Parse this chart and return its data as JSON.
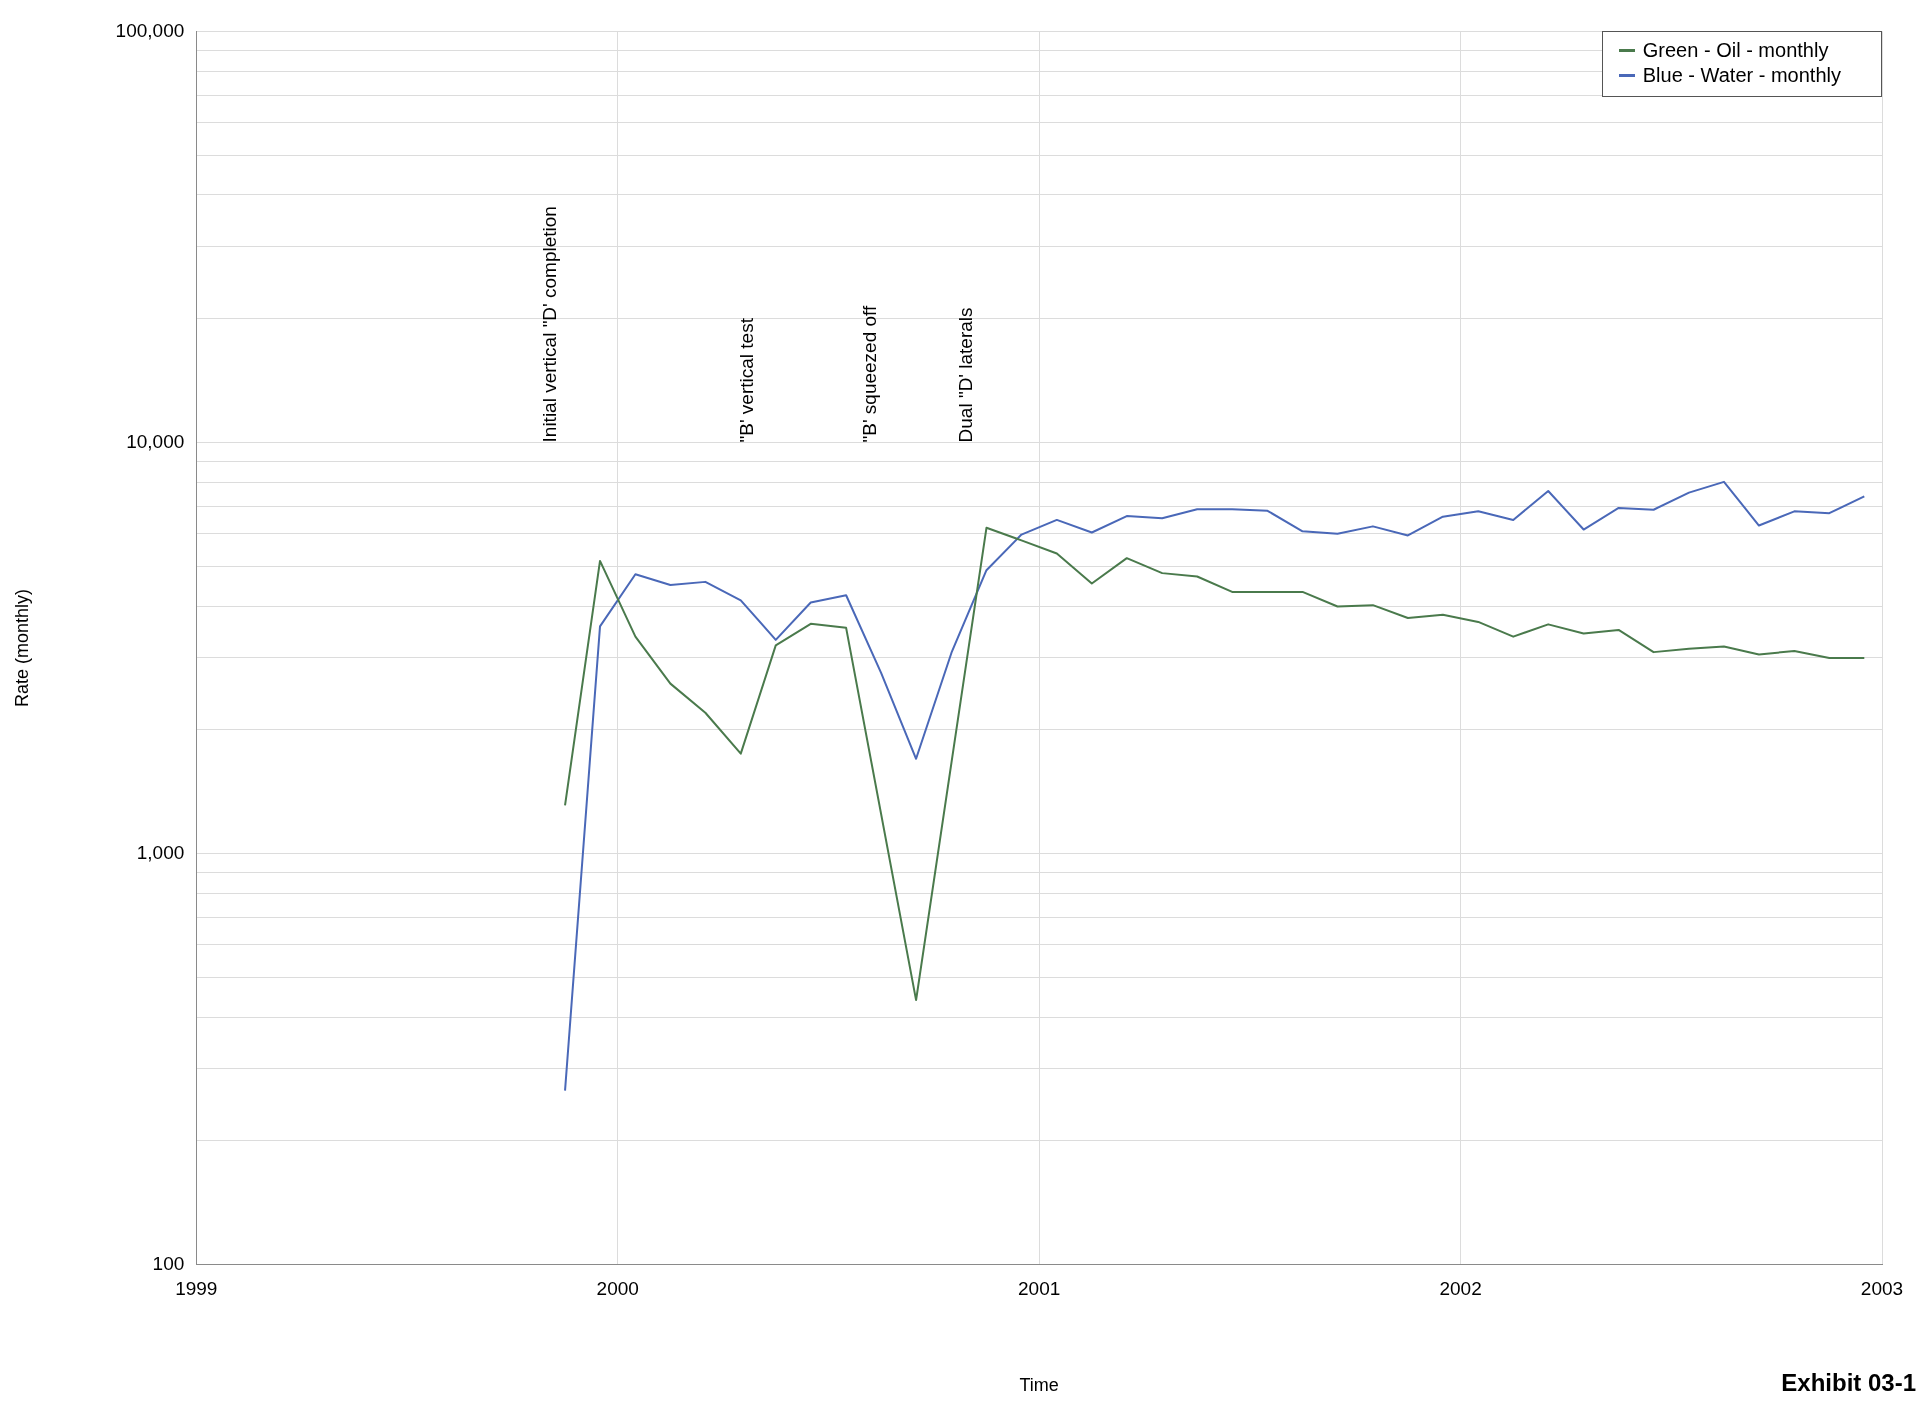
{
  "chart_data": {
    "type": "line",
    "xlabel": "Time",
    "ylabel": "Rate (monthly)",
    "log": "y",
    "grid": true,
    "legend": "top right",
    "marker": "none",
    "line_style": "solid",
    "xlim": [
      1999,
      2003
    ],
    "xticks": [
      1999,
      2000,
      2001,
      2002,
      2003
    ],
    "ylim": [
      100,
      100000
    ],
    "yticks": [
      100,
      {
        "value": 200,
        "label": null
      },
      {
        "value": 300,
        "label": null
      },
      {
        "value": 400,
        "label": null
      },
      {
        "value": 500,
        "label": null
      },
      {
        "value": 600,
        "label": null
      },
      {
        "value": 700,
        "label": null
      },
      {
        "value": 800,
        "label": null
      },
      {
        "value": 900,
        "label": null
      },
      {
        "value": 1000,
        "label": "1,000"
      },
      {
        "value": 2000,
        "label": null
      },
      {
        "value": 3000,
        "label": null
      },
      {
        "value": 4000,
        "label": null
      },
      {
        "value": 5000,
        "label": null
      },
      {
        "value": 6000,
        "label": null
      },
      {
        "value": 7000,
        "label": null
      },
      {
        "value": 8000,
        "label": null
      },
      {
        "value": 9000,
        "label": null
      },
      {
        "value": 10000,
        "label": "10,000"
      },
      {
        "value": 20000,
        "label": null
      },
      {
        "value": 30000,
        "label": null
      },
      {
        "value": 40000,
        "label": null
      },
      {
        "value": 50000,
        "label": null
      },
      {
        "value": 60000,
        "label": null
      },
      {
        "value": 70000,
        "label": null
      },
      {
        "value": 80000,
        "label": null
      },
      {
        "value": 90000,
        "label": null
      },
      {
        "value": 100000,
        "label": "100,000"
      }
    ],
    "series": [
      {
        "name": "Green - Oil - monthly",
        "color": "#4a7a4c",
        "x": [
          1999.875,
          1999.958,
          2000.042,
          2000.125,
          2000.208,
          2000.292,
          2000.375,
          2000.458,
          2000.542,
          2000.708,
          2000.875,
          2000.958,
          2001.042,
          2001.125,
          2001.208,
          2001.292,
          2001.375,
          2001.458,
          2001.542,
          2001.625,
          2001.708,
          2001.792,
          2001.875,
          2001.958,
          2002.042,
          2002.125,
          2002.208,
          2002.292,
          2002.375,
          2002.458,
          2002.542,
          2002.625,
          2002.708,
          2002.792,
          2002.875,
          2002.958
        ],
        "values": [
          1310,
          5150,
          3370,
          2590,
          2200,
          1750,
          3210,
          3620,
          3540,
          440,
          6200,
          5780,
          5370,
          4540,
          5230,
          4810,
          4720,
          4330,
          4330,
          4330,
          3990,
          4020,
          3740,
          3810,
          3660,
          3370,
          3610,
          3430,
          3500,
          3090,
          3150,
          3190,
          3050,
          3110,
          2990,
          2990
        ]
      },
      {
        "name": "Blue - Water - monthly",
        "color": "#4a68b8",
        "x": [
          1999.875,
          1999.958,
          2000.042,
          2000.125,
          2000.208,
          2000.292,
          2000.375,
          2000.458,
          2000.542,
          2000.625,
          2000.708,
          2000.792,
          2000.875,
          2000.958,
          2001.042,
          2001.125,
          2001.208,
          2001.292,
          2001.375,
          2001.458,
          2001.542,
          2001.625,
          2001.708,
          2001.792,
          2001.875,
          2001.958,
          2002.042,
          2002.125,
          2002.208,
          2002.292,
          2002.375,
          2002.458,
          2002.542,
          2002.625,
          2002.708,
          2002.792,
          2002.875,
          2002.958
        ],
        "values": [
          265,
          3570,
          4780,
          4500,
          4580,
          4130,
          3310,
          4080,
          4250,
          2750,
          1700,
          3080,
          4890,
          5970,
          6480,
          6040,
          6620,
          6540,
          6880,
          6880,
          6820,
          6080,
          6000,
          6250,
          5940,
          6600,
          6800,
          6480,
          7620,
          6140,
          6930,
          6860,
          7550,
          8020,
          6280,
          6800,
          6730,
          7390
        ]
      }
    ],
    "annotations": [
      "Initial vertical \"D' completion",
      "\"B' vertical test",
      "\"B' squeezed off",
      "Dual \"D' laterals",
      "Exhibit 03-1"
    ]
  }
}
